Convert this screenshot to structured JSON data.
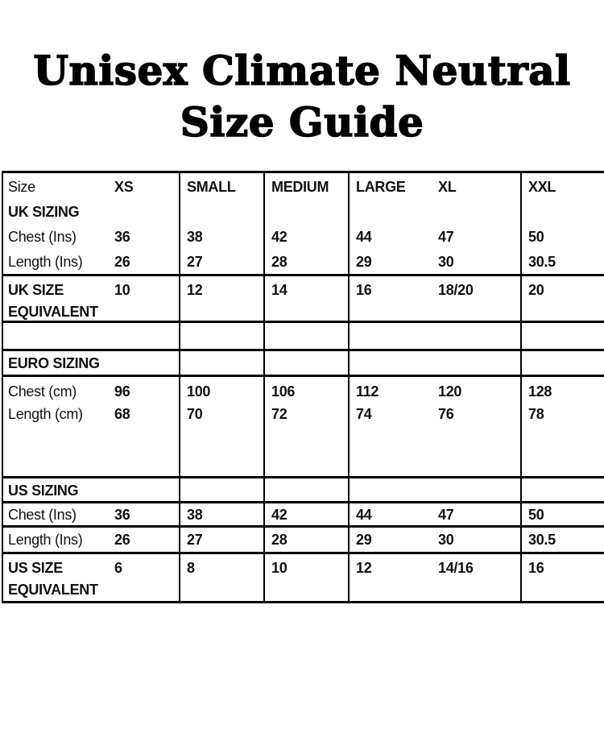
{
  "title": {
    "line1": "Unisex Climate Neutral",
    "line2": "Size Guide"
  },
  "table": {
    "size_label": "Size",
    "columns": [
      "XS",
      "SMALL",
      "MEDIUM",
      "LARGE",
      "XL",
      "XXL"
    ],
    "uk": {
      "section_label": "UK SIZING",
      "chest_label": "Chest (Ins)",
      "chest": [
        "36",
        "38",
        "42",
        "44",
        "47",
        "50"
      ],
      "length_label": "Length (Ins)",
      "length": [
        "26",
        "27",
        "28",
        "29",
        "30",
        "30.5"
      ],
      "equiv_label1": "UK SIZE",
      "equiv_label2": "EQUIVALENT",
      "equiv": [
        "10",
        "12",
        "14",
        "16",
        "18/20",
        "20"
      ]
    },
    "euro": {
      "section_label": "EURO SIZING",
      "chest_label": "Chest (cm)",
      "chest": [
        "96",
        "100",
        "106",
        "112",
        "120",
        "128"
      ],
      "length_label": "Length (cm)",
      "length": [
        "68",
        "70",
        "72",
        "74",
        "76",
        "78"
      ]
    },
    "us": {
      "section_label": "US SIZING",
      "chest_label": "Chest (Ins)",
      "chest": [
        "36",
        "38",
        "42",
        "44",
        "47",
        "50"
      ],
      "length_label": "Length (Ins)",
      "length": [
        "26",
        "27",
        "28",
        "29",
        "30",
        "30.5"
      ],
      "equiv_label1": "US SIZE",
      "equiv_label2": "EQUIVALENT",
      "equiv": [
        "6",
        "8",
        "10",
        "12",
        "14/16",
        "16"
      ]
    }
  }
}
